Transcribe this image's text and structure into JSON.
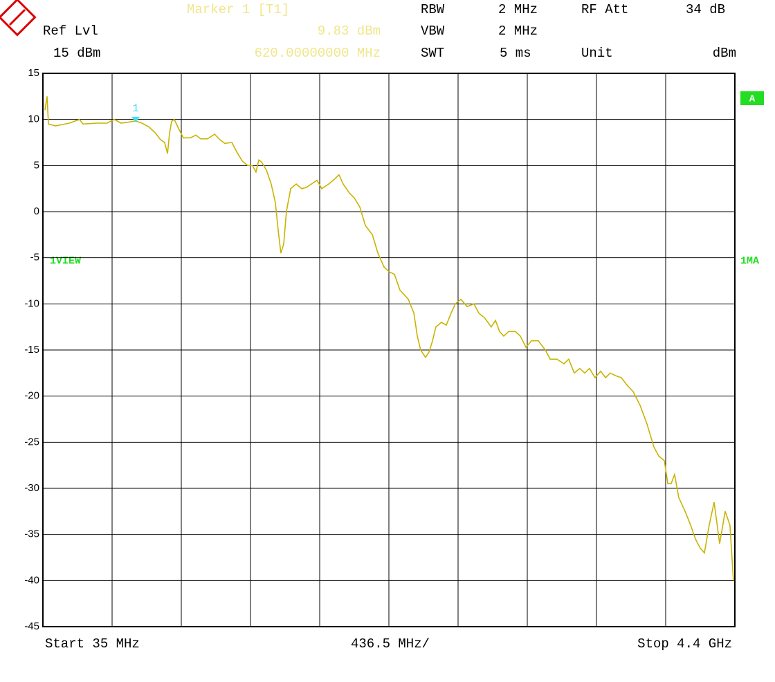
{
  "header": {
    "marker_title": "Marker 1 [T1]",
    "ref_lvl_label": "Ref Lvl",
    "ref_lvl": "15 dBm",
    "marker_level": "9.83 dBm",
    "marker_freq": "620.00000000 MHz",
    "rbw_label": "RBW",
    "rbw": "2 MHz",
    "rf_att_label": "RF Att",
    "rf_att": "34 dB",
    "vbw_label": "VBW",
    "vbw": "2 MHz",
    "swt_label": "SWT",
    "swt": "5 ms",
    "unit_label": "Unit",
    "unit": "dBm",
    "trace_badge": "A",
    "view_label": "1VIEW",
    "detector_label": "1MA",
    "start": "Start 35 MHz",
    "division": "436.5 MHz/",
    "stop": "Stop 4.4 GHz"
  },
  "chart_data": {
    "type": "line",
    "xlim": [
      35,
      4400
    ],
    "xticks": [
      35,
      471.5,
      908,
      1344.5,
      1781,
      2217.5,
      2654,
      3090.5,
      3527,
      3963.5,
      4400
    ],
    "ylim": [
      -45,
      15
    ],
    "yticks": [
      15,
      10,
      5,
      0,
      -5,
      -10,
      -15,
      -20,
      -25,
      -30,
      -35,
      -40,
      -45
    ],
    "grid": true,
    "marker": {
      "label": "1",
      "x": 620,
      "y": 9.83,
      "color": "#40e0f0"
    },
    "x": [
      48,
      61,
      70,
      114,
      202,
      266,
      288,
      376,
      441,
      485,
      528,
      572,
      620,
      659,
      703,
      746,
      777,
      803,
      821,
      834,
      847,
      864,
      891,
      921,
      965,
      1000,
      1030,
      1074,
      1118,
      1152,
      1183,
      1227,
      1257,
      1292,
      1327,
      1357,
      1379,
      1397,
      1414,
      1445,
      1475,
      1501,
      1519,
      1536,
      1554,
      1571,
      1598,
      1633,
      1667,
      1694,
      1729,
      1764,
      1794,
      1838,
      1873,
      1903,
      1929,
      1969,
      1999,
      2034,
      2069,
      2113,
      2148,
      2187,
      2218,
      2253,
      2287,
      2340,
      2375,
      2397,
      2418,
      2449,
      2471,
      2493,
      2514,
      2549,
      2580,
      2610,
      2637,
      2672,
      2711,
      2754,
      2785,
      2820,
      2842,
      2863,
      2890,
      2916,
      2942,
      2973,
      3016,
      3047,
      3082,
      3117,
      3160,
      3204,
      3235,
      3278,
      3322,
      3352,
      3387,
      3422,
      3453,
      3483,
      3518,
      3553,
      3584,
      3614,
      3649,
      3684,
      3719,
      3758,
      3802,
      3845,
      3889,
      3920,
      3955,
      3977,
      3998,
      4020,
      4046,
      4086,
      4121,
      4151,
      4182,
      4208,
      4238,
      4269,
      4304,
      4339,
      4369,
      4391
    ],
    "series": [
      {
        "color": "#c8b400",
        "values": [
          11,
          12.5,
          9.5,
          9.3,
          9.6,
          10,
          9.5,
          9.6,
          9.6,
          10,
          9.6,
          9.7,
          9.83,
          9.6,
          9.2,
          8.5,
          7.8,
          7.5,
          6.3,
          8.5,
          9.8,
          10,
          9,
          8,
          8,
          8.3,
          7.9,
          7.9,
          8.4,
          7.8,
          7.4,
          7.5,
          6.5,
          5.5,
          5,
          5,
          4.3,
          5.6,
          5.4,
          4.5,
          3,
          1,
          -2,
          -4.5,
          -3.5,
          0,
          2.5,
          3,
          2.5,
          2.6,
          3,
          3.4,
          2.5,
          3,
          3.5,
          4,
          3,
          2,
          1.5,
          0.5,
          -1.5,
          -2.5,
          -4.5,
          -6,
          -6.5,
          -6.8,
          -8.5,
          -9.5,
          -11,
          -13.5,
          -15,
          -15.8,
          -15.2,
          -14,
          -12.5,
          -12,
          -12.3,
          -11,
          -10,
          -9.5,
          -10.3,
          -10,
          -11,
          -11.5,
          -12,
          -12.5,
          -11.8,
          -13,
          -13.5,
          -13,
          -13,
          -13.5,
          -14.7,
          -14,
          -14,
          -15,
          -16,
          -16,
          -16.5,
          -16,
          -17.5,
          -17,
          -17.5,
          -17,
          -18,
          -17.3,
          -18,
          -17.5,
          -17.8,
          -18,
          -18.8,
          -19.5,
          -21,
          -23,
          -25.5,
          -26.5,
          -27,
          -29.5,
          -29.5,
          -28.5,
          -31,
          -32.5,
          -34,
          -35.5,
          -36.5,
          -37,
          -34,
          -31.5,
          -36,
          -32.5,
          -34,
          -40
        ]
      }
    ]
  }
}
